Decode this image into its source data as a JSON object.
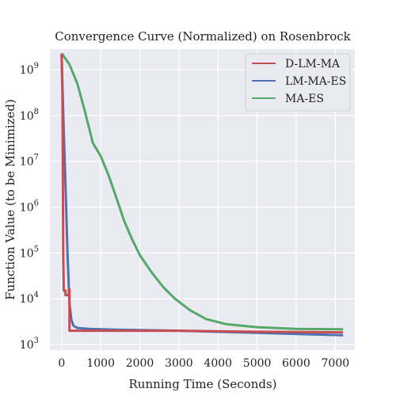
{
  "chart_data": {
    "type": "line",
    "title": "Convergence Curve (Normalized) on Rosenbrock",
    "xlabel": "Running Time (Seconds)",
    "ylabel": "Function Value (to be Minimized)",
    "xlim": [
      -300,
      7500
    ],
    "ylim_log10": [
      2.88,
      9.45
    ],
    "yscale": "log",
    "grid": true,
    "legend_position": "top-right",
    "x_ticks": [
      0,
      1000,
      2000,
      3000,
      4000,
      5000,
      6000,
      7000
    ],
    "x_tick_labels": [
      "0",
      "1000",
      "2000",
      "3000",
      "4000",
      "5000",
      "6000",
      "7000"
    ],
    "y_tick_exponents": [
      3,
      4,
      5,
      6,
      7,
      8,
      9
    ],
    "y_tick_base": "10",
    "series": [
      {
        "name": "D-LM-MA",
        "color": "#c44e52",
        "points": [
          [
            0,
            2200000000.0
          ],
          [
            20,
            300000000.0
          ],
          [
            40,
            100000.0
          ],
          [
            55,
            15000.0
          ],
          [
            100,
            15000.0
          ],
          [
            100,
            12000.0
          ],
          [
            185,
            12000.0
          ],
          [
            185,
            16000.0
          ],
          [
            200,
            16000.0
          ],
          [
            200,
            2000
          ],
          [
            3000,
            2000
          ],
          [
            5000,
            1900
          ],
          [
            7200,
            1850
          ]
        ]
      },
      {
        "name": "LM-MA-ES",
        "color": "#4c72b0",
        "points": [
          [
            0,
            2200000000.0
          ],
          [
            20,
            500000000.0
          ],
          [
            50,
            60000000.0
          ],
          [
            100,
            3000000.0
          ],
          [
            150,
            100000.0
          ],
          [
            200,
            8000
          ],
          [
            250,
            3500
          ],
          [
            300,
            2600
          ],
          [
            400,
            2300
          ],
          [
            700,
            2200
          ],
          [
            1500,
            2100
          ],
          [
            3000,
            2000
          ],
          [
            5000,
            1800
          ],
          [
            7200,
            1600
          ]
        ]
      },
      {
        "name": "MA-ES",
        "color": "#55a868",
        "points": [
          [
            0,
            2300000000.0
          ],
          [
            200,
            1300000000.0
          ],
          [
            400,
            500000000.0
          ],
          [
            600,
            120000000.0
          ],
          [
            800,
            25000000.0
          ],
          [
            1000,
            13000000.0
          ],
          [
            1200,
            5000000.0
          ],
          [
            1400,
            1600000.0
          ],
          [
            1600,
            500000.0
          ],
          [
            1800,
            200000.0
          ],
          [
            2000,
            90000.0
          ],
          [
            2300,
            38000.0
          ],
          [
            2600,
            18000.0
          ],
          [
            2900,
            10000.0
          ],
          [
            3300,
            5500
          ],
          [
            3700,
            3600
          ],
          [
            4200,
            2800
          ],
          [
            5000,
            2400
          ],
          [
            6000,
            2200
          ],
          [
            7200,
            2150
          ]
        ]
      }
    ]
  }
}
